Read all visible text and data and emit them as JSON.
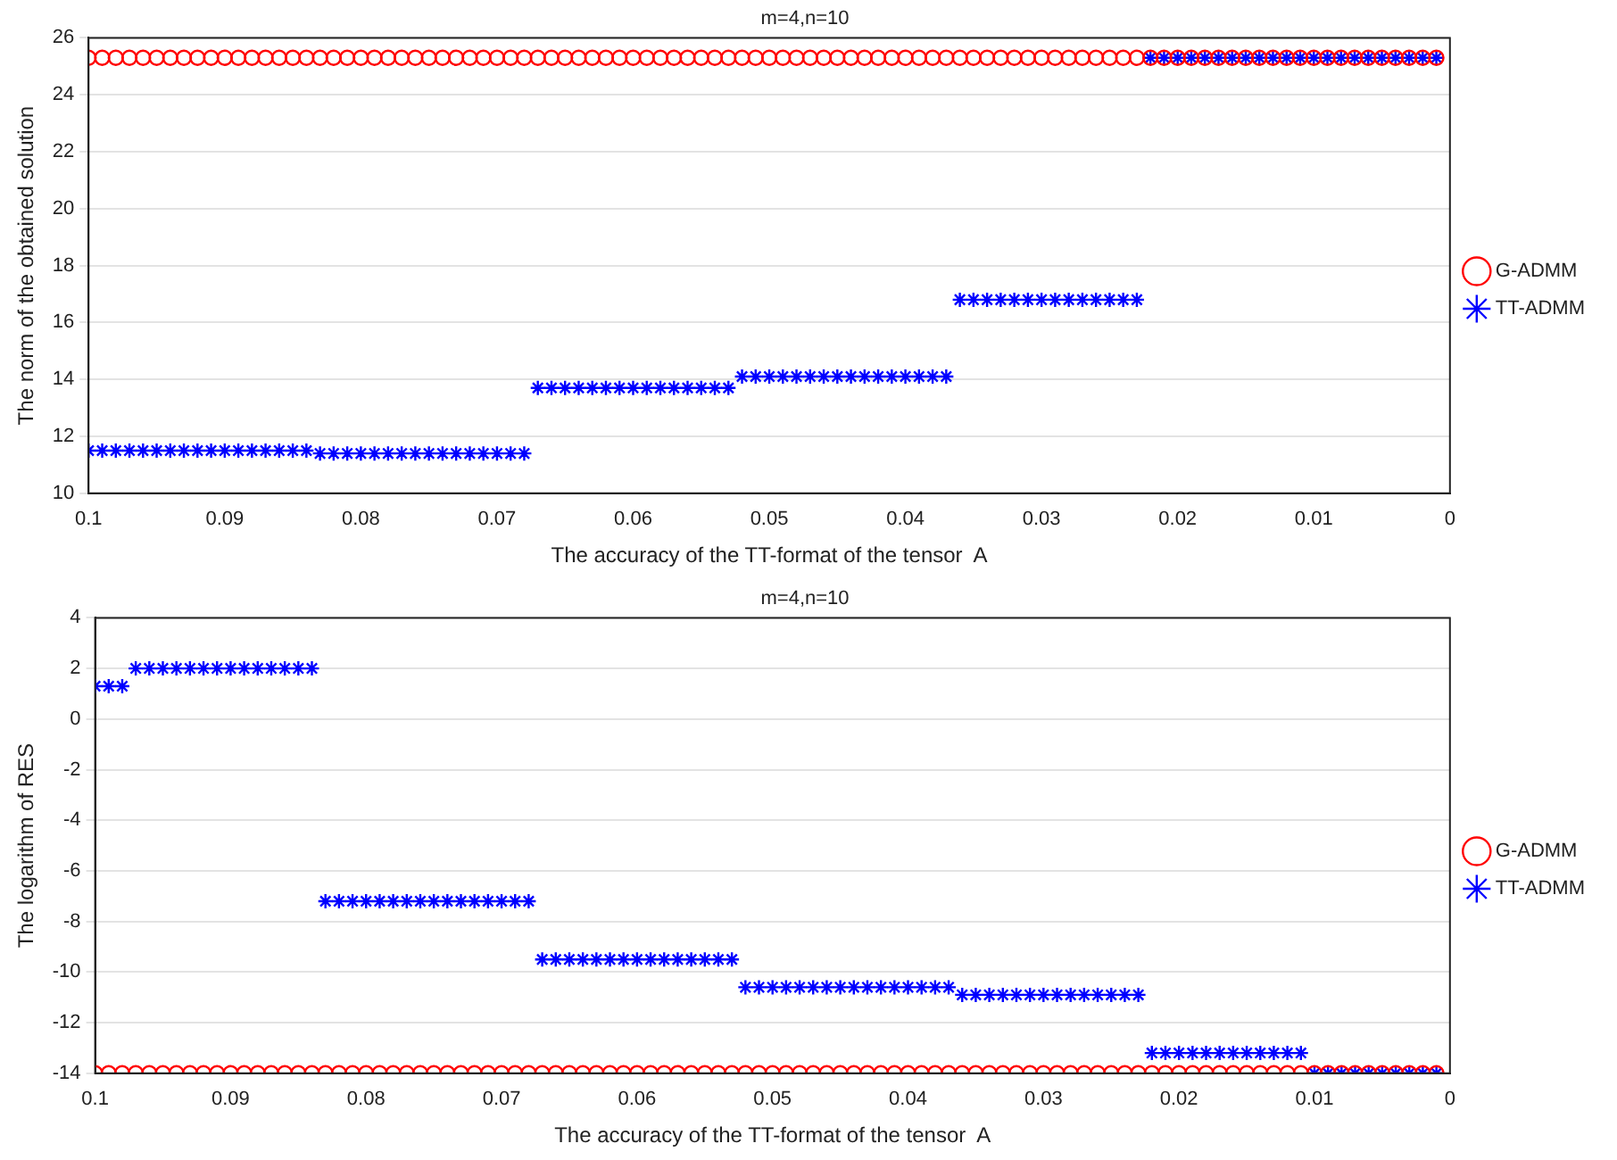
{
  "chart_data": [
    {
      "type": "scatter",
      "title": "m=4,n=10",
      "xlabel": "The accuracy of the TT-format of the tensor  A",
      "ylabel": "The norm of the obtained solution",
      "x": [
        0.1,
        0.099,
        0.098,
        0.097,
        0.096,
        0.095,
        0.094,
        0.093,
        0.092,
        0.091,
        0.09,
        0.089,
        0.088,
        0.087,
        0.086,
        0.085,
        0.084,
        0.083,
        0.082,
        0.081,
        0.08,
        0.079,
        0.078,
        0.077,
        0.076,
        0.075,
        0.074,
        0.073,
        0.072,
        0.071,
        0.07,
        0.069,
        0.068,
        0.067,
        0.066,
        0.065,
        0.064,
        0.063,
        0.062,
        0.061,
        0.06,
        0.059,
        0.058,
        0.057,
        0.056,
        0.055,
        0.054,
        0.053,
        0.052,
        0.051,
        0.05,
        0.049,
        0.048,
        0.047,
        0.046,
        0.045,
        0.044,
        0.043,
        0.042,
        0.041,
        0.04,
        0.039,
        0.038,
        0.037,
        0.036,
        0.035,
        0.034,
        0.033,
        0.032,
        0.031,
        0.03,
        0.029,
        0.028,
        0.027,
        0.026,
        0.025,
        0.024,
        0.023,
        0.022,
        0.021,
        0.02,
        0.019,
        0.018,
        0.017,
        0.016,
        0.015,
        0.014,
        0.013,
        0.012,
        0.011,
        0.01,
        0.009,
        0.008,
        0.007,
        0.006,
        0.005,
        0.004,
        0.003,
        0.002,
        0.001
      ],
      "series": [
        {
          "name": "G-ADMM",
          "color": "#ff0000",
          "marker": "circle",
          "values": [
            25.3,
            25.3,
            25.3,
            25.3,
            25.3,
            25.3,
            25.3,
            25.3,
            25.3,
            25.3,
            25.3,
            25.3,
            25.3,
            25.3,
            25.3,
            25.3,
            25.3,
            25.3,
            25.3,
            25.3,
            25.3,
            25.3,
            25.3,
            25.3,
            25.3,
            25.3,
            25.3,
            25.3,
            25.3,
            25.3,
            25.3,
            25.3,
            25.3,
            25.3,
            25.3,
            25.3,
            25.3,
            25.3,
            25.3,
            25.3,
            25.3,
            25.3,
            25.3,
            25.3,
            25.3,
            25.3,
            25.3,
            25.3,
            25.3,
            25.3,
            25.3,
            25.3,
            25.3,
            25.3,
            25.3,
            25.3,
            25.3,
            25.3,
            25.3,
            25.3,
            25.3,
            25.3,
            25.3,
            25.3,
            25.3,
            25.3,
            25.3,
            25.3,
            25.3,
            25.3,
            25.3,
            25.3,
            25.3,
            25.3,
            25.3,
            25.3,
            25.3,
            25.3,
            25.3,
            25.3,
            25.3,
            25.3,
            25.3,
            25.3,
            25.3,
            25.3,
            25.3,
            25.3,
            25.3,
            25.3,
            25.3,
            25.3,
            25.3,
            25.3,
            25.3,
            25.3,
            25.3,
            25.3,
            25.3,
            25.3
          ]
        },
        {
          "name": "TT-ADMM",
          "color": "#0000ff",
          "marker": "cross",
          "values": [
            11.5,
            11.5,
            11.5,
            11.5,
            11.5,
            11.5,
            11.5,
            11.5,
            11.5,
            11.5,
            11.5,
            11.5,
            11.5,
            11.5,
            11.5,
            11.5,
            11.5,
            11.4,
            11.4,
            11.4,
            11.4,
            11.4,
            11.4,
            11.4,
            11.4,
            11.4,
            11.4,
            11.4,
            11.4,
            11.4,
            11.4,
            11.4,
            11.4,
            13.7,
            13.7,
            13.7,
            13.7,
            13.7,
            13.7,
            13.7,
            13.7,
            13.7,
            13.7,
            13.7,
            13.7,
            13.7,
            13.7,
            13.7,
            14.1,
            14.1,
            14.1,
            14.1,
            14.1,
            14.1,
            14.1,
            14.1,
            14.1,
            14.1,
            14.1,
            14.1,
            14.1,
            14.1,
            14.1,
            14.1,
            16.8,
            16.8,
            16.8,
            16.8,
            16.8,
            16.8,
            16.8,
            16.8,
            16.8,
            16.8,
            16.8,
            16.8,
            16.8,
            16.8,
            25.3,
            25.3,
            25.3,
            25.3,
            25.3,
            25.3,
            25.3,
            25.3,
            25.3,
            25.3,
            25.3,
            25.3,
            25.3,
            25.3,
            25.3,
            25.3,
            25.3,
            25.3,
            25.3,
            25.3,
            25.3,
            25.3
          ]
        }
      ],
      "xlim": [
        0.1,
        0
      ],
      "xticks": [
        0.1,
        0.09,
        0.08,
        0.07,
        0.06,
        0.05,
        0.04,
        0.03,
        0.02,
        0.01,
        0
      ],
      "ylim": [
        10,
        26
      ],
      "yticks": [
        10,
        12,
        14,
        16,
        18,
        20,
        22,
        24,
        26
      ],
      "grid": "y",
      "legend": "right"
    },
    {
      "type": "scatter",
      "title": "m=4,n=10",
      "xlabel": "The accuracy of the TT-format of the tensor  A",
      "ylabel": "The logarithm of RES",
      "x": [
        0.1,
        0.099,
        0.098,
        0.097,
        0.096,
        0.095,
        0.094,
        0.093,
        0.092,
        0.091,
        0.09,
        0.089,
        0.088,
        0.087,
        0.086,
        0.085,
        0.084,
        0.083,
        0.082,
        0.081,
        0.08,
        0.079,
        0.078,
        0.077,
        0.076,
        0.075,
        0.074,
        0.073,
        0.072,
        0.071,
        0.07,
        0.069,
        0.068,
        0.067,
        0.066,
        0.065,
        0.064,
        0.063,
        0.062,
        0.061,
        0.06,
        0.059,
        0.058,
        0.057,
        0.056,
        0.055,
        0.054,
        0.053,
        0.052,
        0.051,
        0.05,
        0.049,
        0.048,
        0.047,
        0.046,
        0.045,
        0.044,
        0.043,
        0.042,
        0.041,
        0.04,
        0.039,
        0.038,
        0.037,
        0.036,
        0.035,
        0.034,
        0.033,
        0.032,
        0.031,
        0.03,
        0.029,
        0.028,
        0.027,
        0.026,
        0.025,
        0.024,
        0.023,
        0.022,
        0.021,
        0.02,
        0.019,
        0.018,
        0.017,
        0.016,
        0.015,
        0.014,
        0.013,
        0.012,
        0.011,
        0.01,
        0.009,
        0.008,
        0.007,
        0.006,
        0.005,
        0.004,
        0.003,
        0.002,
        0.001
      ],
      "series": [
        {
          "name": "G-ADMM",
          "color": "#ff0000",
          "marker": "circle",
          "values": [
            -14,
            -14,
            -14,
            -14,
            -14,
            -14,
            -14,
            -14,
            -14,
            -14,
            -14,
            -14,
            -14,
            -14,
            -14,
            -14,
            -14,
            -14,
            -14,
            -14,
            -14,
            -14,
            -14,
            -14,
            -14,
            -14,
            -14,
            -14,
            -14,
            -14,
            -14,
            -14,
            -14,
            -14,
            -14,
            -14,
            -14,
            -14,
            -14,
            -14,
            -14,
            -14,
            -14,
            -14,
            -14,
            -14,
            -14,
            -14,
            -14,
            -14,
            -14,
            -14,
            -14,
            -14,
            -14,
            -14,
            -14,
            -14,
            -14,
            -14,
            -14,
            -14,
            -14,
            -14,
            -14,
            -14,
            -14,
            -14,
            -14,
            -14,
            -14,
            -14,
            -14,
            -14,
            -14,
            -14,
            -14,
            -14,
            -14,
            -14,
            -14,
            -14,
            -14,
            -14,
            -14,
            -14,
            -14,
            -14,
            -14,
            -14,
            -14,
            -14,
            -14,
            -14,
            -14,
            -14,
            -14,
            -14,
            -14,
            -14
          ]
        },
        {
          "name": "TT-ADMM",
          "color": "#0000ff",
          "marker": "cross",
          "values": [
            1.3,
            1.3,
            1.3,
            2,
            2,
            2,
            2,
            2,
            2,
            2,
            2,
            2,
            2,
            2,
            2,
            2,
            2,
            -7.2,
            -7.2,
            -7.2,
            -7.2,
            -7.2,
            -7.2,
            -7.2,
            -7.2,
            -7.2,
            -7.2,
            -7.2,
            -7.2,
            -7.2,
            -7.2,
            -7.2,
            -7.2,
            -9.5,
            -9.5,
            -9.5,
            -9.5,
            -9.5,
            -9.5,
            -9.5,
            -9.5,
            -9.5,
            -9.5,
            -9.5,
            -9.5,
            -9.5,
            -9.5,
            -9.5,
            -10.6,
            -10.6,
            -10.6,
            -10.6,
            -10.6,
            -10.6,
            -10.6,
            -10.6,
            -10.6,
            -10.6,
            -10.6,
            -10.6,
            -10.6,
            -10.6,
            -10.6,
            -10.6,
            -10.9,
            -10.9,
            -10.9,
            -10.9,
            -10.9,
            -10.9,
            -10.9,
            -10.9,
            -10.9,
            -10.9,
            -10.9,
            -10.9,
            -10.9,
            -10.9,
            -13.2,
            -13.2,
            -13.2,
            -13.2,
            -13.2,
            -13.2,
            -13.2,
            -13.2,
            -13.2,
            -13.2,
            -13.2,
            -13.2,
            -14,
            -14,
            -14,
            -14,
            -14,
            -14,
            -14,
            -14,
            -14,
            -14
          ]
        }
      ],
      "xlim": [
        0.1,
        0
      ],
      "xticks": [
        0.1,
        0.09,
        0.08,
        0.07,
        0.06,
        0.05,
        0.04,
        0.03,
        0.02,
        0.01,
        0
      ],
      "ylim": [
        -14,
        4
      ],
      "yticks": [
        -14,
        -12,
        -10,
        -8,
        -6,
        -4,
        -2,
        0,
        2,
        4
      ],
      "grid": "y",
      "legend": "right"
    }
  ]
}
